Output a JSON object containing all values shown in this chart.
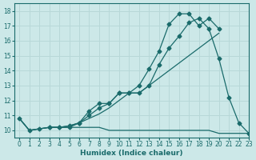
{
  "background_color": "#cce8e8",
  "grid_color": "#b8d8d8",
  "line_color": "#1a6b6b",
  "xlabel": "Humidex (Indice chaleur)",
  "xlim": [
    -0.5,
    23
  ],
  "ylim": [
    9.5,
    18.5
  ],
  "yticks": [
    10,
    11,
    12,
    13,
    14,
    15,
    16,
    17,
    18
  ],
  "xticks": [
    0,
    1,
    2,
    3,
    4,
    5,
    6,
    7,
    8,
    9,
    10,
    11,
    12,
    13,
    14,
    15,
    16,
    17,
    18,
    19,
    20,
    21,
    22,
    23
  ],
  "series": [
    {
      "x": [
        0,
        1,
        2,
        3,
        4,
        5,
        6,
        7,
        8,
        9,
        10,
        11,
        12,
        13,
        14,
        15,
        16,
        17,
        18,
        19,
        20,
        21,
        22,
        23
      ],
      "y": [
        10.8,
        10.0,
        10.1,
        10.2,
        10.2,
        10.2,
        10.5,
        11.3,
        11.8,
        11.8,
        12.5,
        12.5,
        13.0,
        14.1,
        15.3,
        17.1,
        17.8,
        17.8,
        17.0,
        17.5,
        16.8,
        null,
        null,
        null
      ],
      "has_markers": true
    },
    {
      "x": [
        3,
        4,
        5,
        6,
        7,
        8,
        9,
        10,
        11,
        12,
        13,
        14,
        15,
        16,
        17,
        18,
        19,
        20,
        21,
        22,
        23
      ],
      "y": [
        10.2,
        10.2,
        10.3,
        10.5,
        11.0,
        11.5,
        11.8,
        12.5,
        12.5,
        12.5,
        13.0,
        14.4,
        15.5,
        16.3,
        17.2,
        17.5,
        16.8,
        14.8,
        12.2,
        10.5,
        9.8
      ],
      "has_markers": true
    },
    {
      "x": [
        0,
        1,
        2,
        3,
        4,
        5,
        6,
        7,
        8,
        9,
        10,
        11,
        12,
        13,
        14,
        15,
        16,
        17,
        18,
        19,
        20,
        21,
        22,
        23
      ],
      "y": [
        10.8,
        10.0,
        10.1,
        10.2,
        10.2,
        10.3,
        10.5,
        10.8,
        11.1,
        11.5,
        12.0,
        12.5,
        12.5,
        13.0,
        13.5,
        14.0,
        14.5,
        15.0,
        15.5,
        16.0,
        16.5,
        null,
        null,
        null
      ],
      "has_markers": false
    },
    {
      "x": [
        0,
        1,
        2,
        3,
        4,
        5,
        6,
        7,
        8,
        9,
        10,
        11,
        12,
        13,
        14,
        15,
        16,
        17,
        18,
        19,
        20,
        21,
        22,
        23
      ],
      "y": [
        10.8,
        10.0,
        10.1,
        10.2,
        10.2,
        10.2,
        10.2,
        10.2,
        10.2,
        10.0,
        10.0,
        10.0,
        10.0,
        10.0,
        10.0,
        10.0,
        10.0,
        10.0,
        10.0,
        10.0,
        9.8,
        9.8,
        9.8,
        9.8
      ],
      "has_markers": false
    }
  ]
}
